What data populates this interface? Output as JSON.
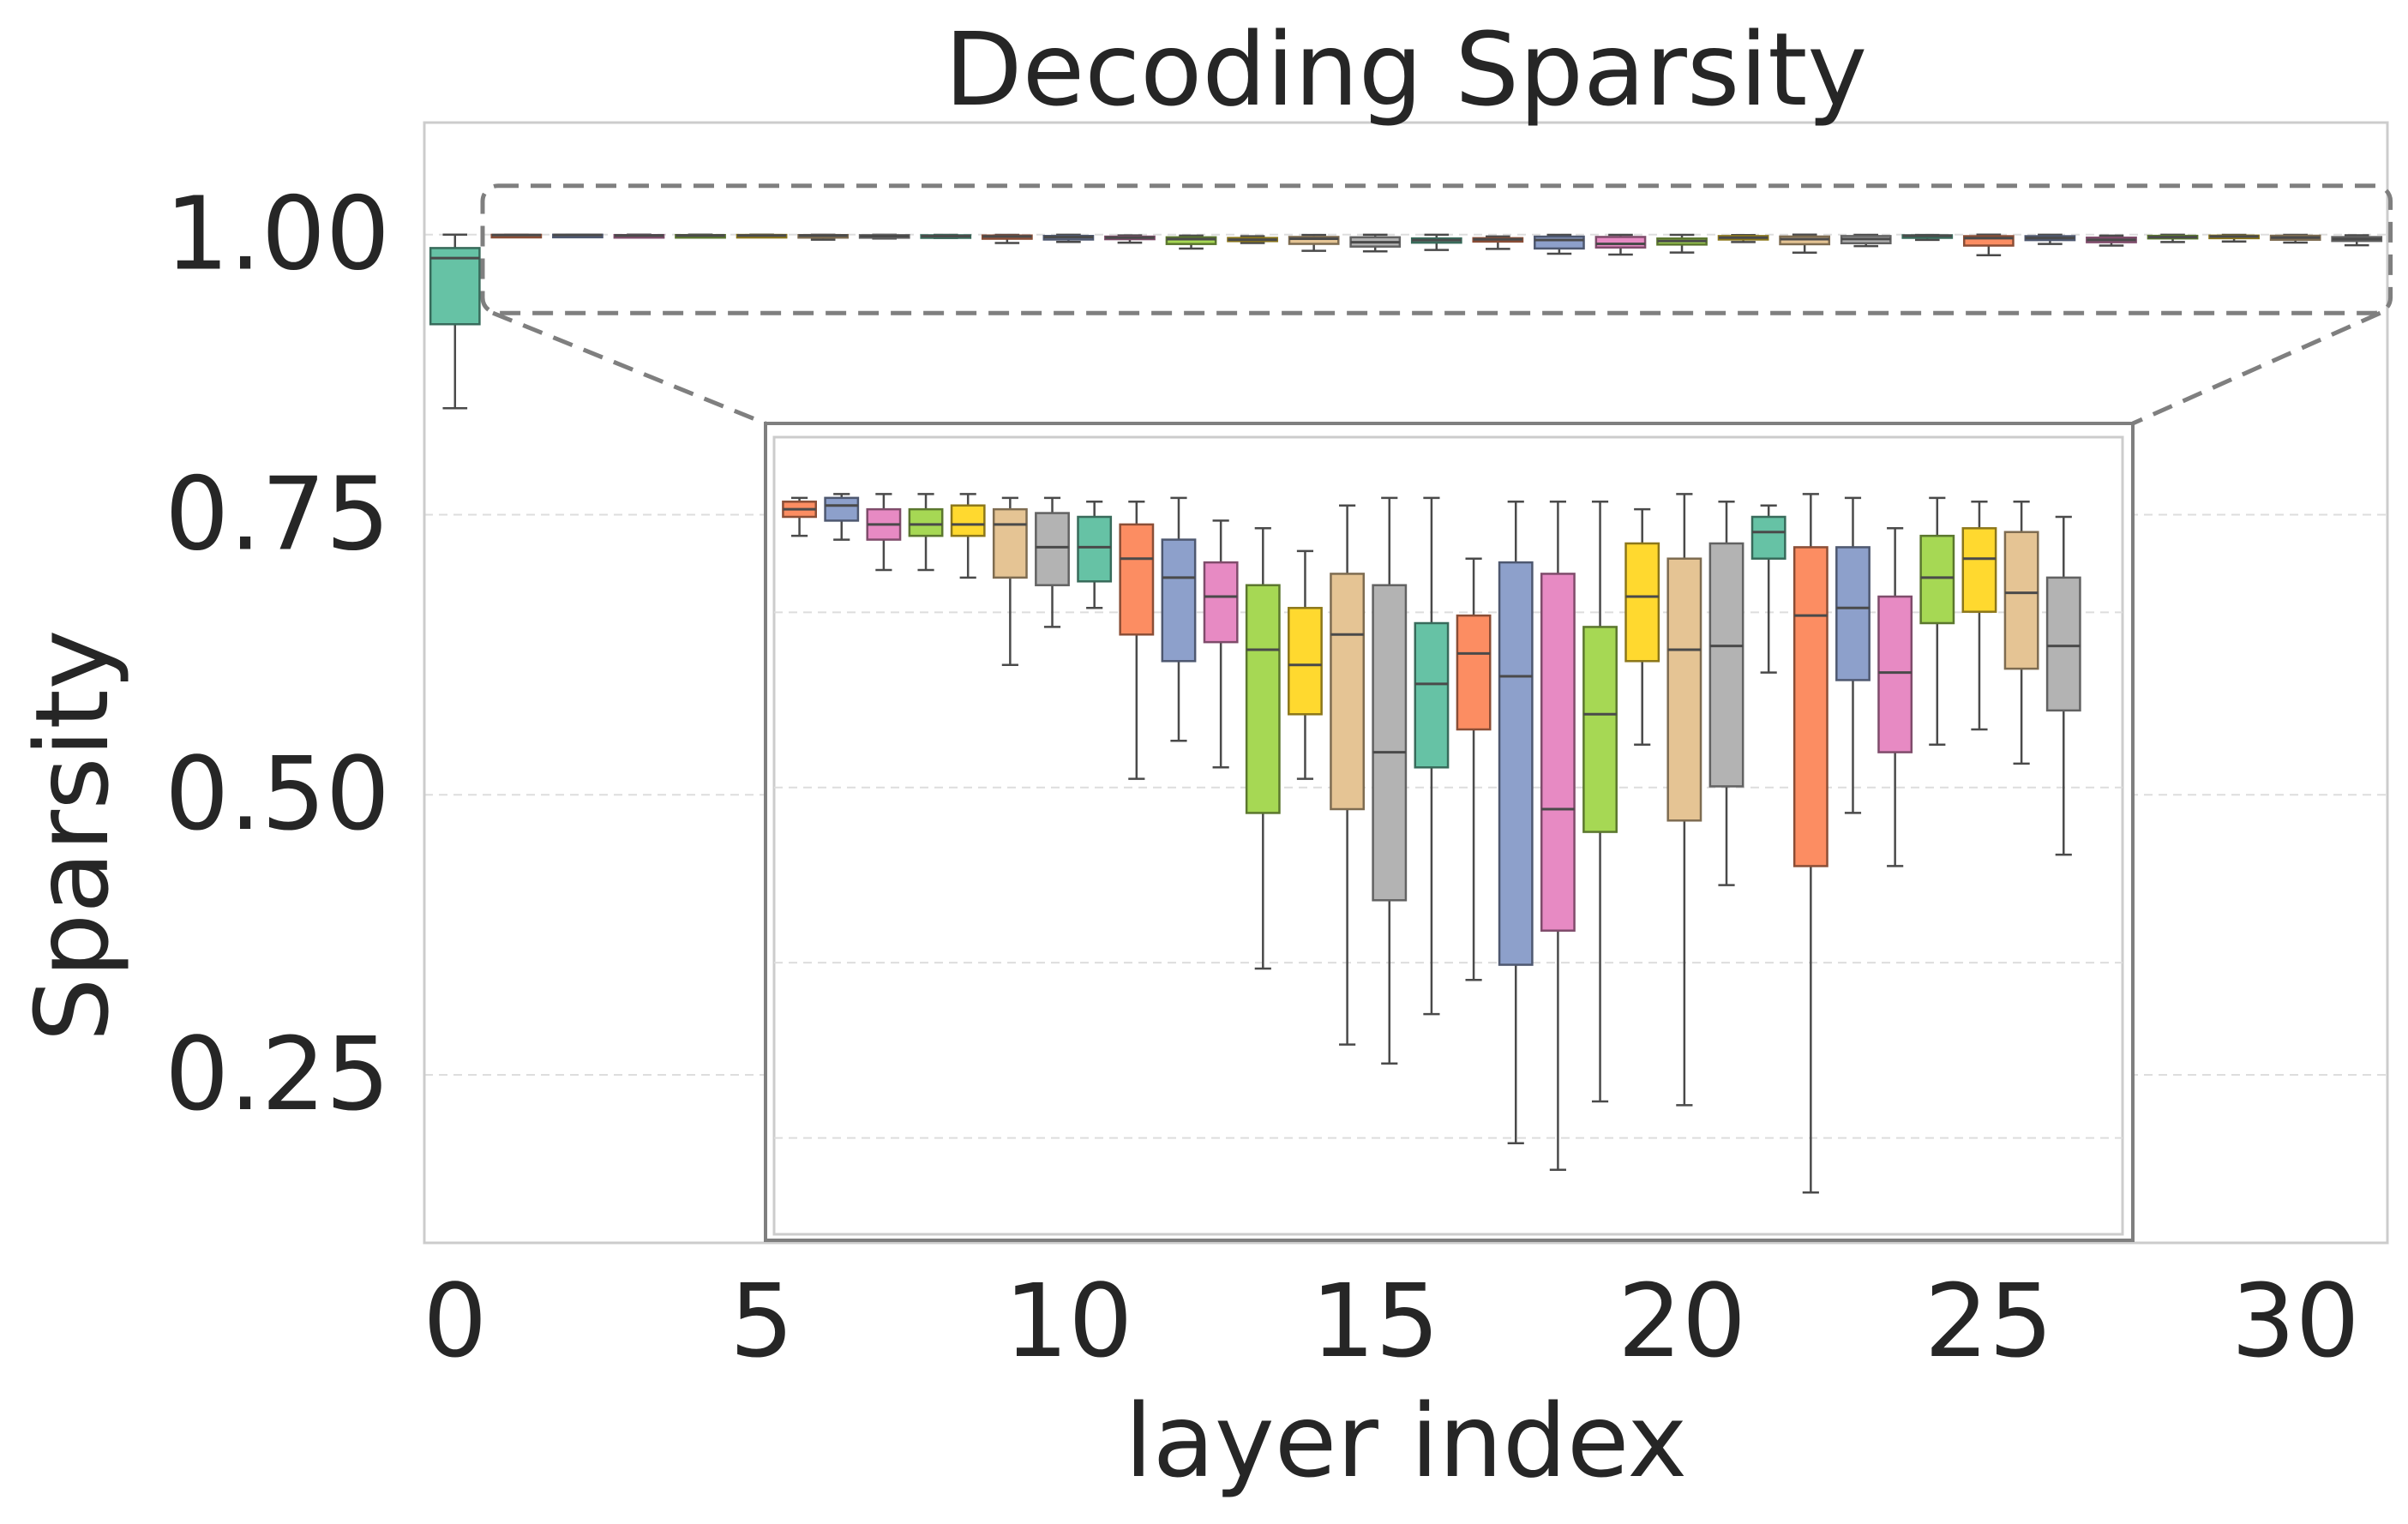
{
  "chart_data": {
    "type": "box",
    "title": "Decoding Sparsity",
    "xlabel": "layer index",
    "ylabel": "Sparsity",
    "xlim": [
      -0.5,
      31.5
    ],
    "ylim": [
      0.1,
      1.1
    ],
    "xticks": [
      0,
      5,
      10,
      15,
      20,
      25,
      30
    ],
    "yticks": [
      0.25,
      0.5,
      0.75,
      1.0
    ],
    "ytick_labels": [
      "0.25",
      "0.50",
      "0.75",
      "1.00"
    ],
    "grid": true,
    "palette": [
      "#66c2a5",
      "#fc8d62",
      "#8da0cb",
      "#e78ac3",
      "#a6d854",
      "#ffd92f",
      "#e5c494",
      "#b3b3b3"
    ],
    "zoom_region": {
      "layers": [
        1,
        31
      ],
      "ylim": [
        0.93,
        1.0
      ]
    },
    "inset_ylim": [
      0.9805,
      1.0015
    ],
    "layers": [
      {
        "layer": 0,
        "whislo": 0.845,
        "q1": 0.92,
        "med": 0.979,
        "q3": 0.988,
        "whishi": 1.0
      },
      {
        "layer": 1,
        "whislo": 0.9989,
        "q1": 0.9994,
        "med": 0.9996,
        "q3": 0.9998,
        "whishi": 0.9999
      },
      {
        "layer": 2,
        "whislo": 0.9988,
        "q1": 0.9993,
        "med": 0.9997,
        "q3": 0.9999,
        "whishi": 1.0
      },
      {
        "layer": 3,
        "whislo": 0.998,
        "q1": 0.9988,
        "med": 0.9992,
        "q3": 0.9996,
        "whishi": 1.0
      },
      {
        "layer": 4,
        "whislo": 0.998,
        "q1": 0.9989,
        "med": 0.9992,
        "q3": 0.9996,
        "whishi": 1.0
      },
      {
        "layer": 5,
        "whislo": 0.9978,
        "q1": 0.9989,
        "med": 0.9992,
        "q3": 0.9997,
        "whishi": 1.0
      },
      {
        "layer": 6,
        "whislo": 0.9955,
        "q1": 0.9978,
        "med": 0.9992,
        "q3": 0.9996,
        "whishi": 0.9999
      },
      {
        "layer": 7,
        "whislo": 0.9965,
        "q1": 0.9976,
        "med": 0.9986,
        "q3": 0.9995,
        "whishi": 0.9999
      },
      {
        "layer": 8,
        "whislo": 0.997,
        "q1": 0.9977,
        "med": 0.9986,
        "q3": 0.9994,
        "whishi": 0.9998
      },
      {
        "layer": 9,
        "whislo": 0.9925,
        "q1": 0.9963,
        "med": 0.9983,
        "q3": 0.9992,
        "whishi": 0.9998
      },
      {
        "layer": 10,
        "whislo": 0.9935,
        "q1": 0.9956,
        "med": 0.9978,
        "q3": 0.9988,
        "whishi": 0.9999
      },
      {
        "layer": 11,
        "whislo": 0.9928,
        "q1": 0.9961,
        "med": 0.9973,
        "q3": 0.9982,
        "whishi": 0.9993
      },
      {
        "layer": 12,
        "whislo": 0.9875,
        "q1": 0.9916,
        "med": 0.9959,
        "q3": 0.9976,
        "whishi": 0.9991
      },
      {
        "layer": 13,
        "whislo": 0.9925,
        "q1": 0.9942,
        "med": 0.9955,
        "q3": 0.997,
        "whishi": 0.9985
      },
      {
        "layer": 14,
        "whislo": 0.9855,
        "q1": 0.9917,
        "med": 0.9963,
        "q3": 0.9979,
        "whishi": 0.9997
      },
      {
        "layer": 15,
        "whislo": 0.985,
        "q1": 0.9893,
        "med": 0.9932,
        "q3": 0.9976,
        "whishi": 0.9999
      },
      {
        "layer": 16,
        "whislo": 0.9863,
        "q1": 0.9928,
        "med": 0.995,
        "q3": 0.9966,
        "whishi": 0.9999
      },
      {
        "layer": 17,
        "whislo": 0.9872,
        "q1": 0.9938,
        "med": 0.9958,
        "q3": 0.9968,
        "whishi": 0.9983
      },
      {
        "layer": 18,
        "whislo": 0.9829,
        "q1": 0.9876,
        "med": 0.9952,
        "q3": 0.9982,
        "whishi": 0.9998
      },
      {
        "layer": 19,
        "whislo": 0.9822,
        "q1": 0.9885,
        "med": 0.9917,
        "q3": 0.9979,
        "whishi": 0.9998
      },
      {
        "layer": 20,
        "whislo": 0.984,
        "q1": 0.9911,
        "med": 0.9942,
        "q3": 0.9965,
        "whishi": 0.9998
      },
      {
        "layer": 21,
        "whislo": 0.9934,
        "q1": 0.9956,
        "med": 0.9973,
        "q3": 0.9987,
        "whishi": 0.9996
      },
      {
        "layer": 22,
        "whislo": 0.9839,
        "q1": 0.9914,
        "med": 0.9959,
        "q3": 0.9983,
        "whishi": 1.0
      },
      {
        "layer": 23,
        "whislo": 0.9897,
        "q1": 0.9923,
        "med": 0.996,
        "q3": 0.9987,
        "whishi": 0.9998
      },
      {
        "layer": 24,
        "whislo": 0.9953,
        "q1": 0.9983,
        "med": 0.999,
        "q3": 0.9994,
        "whishi": 0.9997
      },
      {
        "layer": 25,
        "whislo": 0.9816,
        "q1": 0.9902,
        "med": 0.9968,
        "q3": 0.9986,
        "whishi": 1.0
      },
      {
        "layer": 26,
        "whislo": 0.9916,
        "q1": 0.9951,
        "med": 0.997,
        "q3": 0.9986,
        "whishi": 0.9999
      },
      {
        "layer": 27,
        "whislo": 0.9902,
        "q1": 0.9932,
        "med": 0.9953,
        "q3": 0.9973,
        "whishi": 0.9991
      },
      {
        "layer": 28,
        "whislo": 0.9934,
        "q1": 0.9966,
        "med": 0.9978,
        "q3": 0.9989,
        "whishi": 0.9999
      },
      {
        "layer": 29,
        "whislo": 0.9938,
        "q1": 0.9969,
        "med": 0.9983,
        "q3": 0.9991,
        "whishi": 0.9998
      },
      {
        "layer": 30,
        "whislo": 0.9929,
        "q1": 0.9954,
        "med": 0.9974,
        "q3": 0.999,
        "whishi": 0.9998
      },
      {
        "layer": 31,
        "whislo": 0.9905,
        "q1": 0.9943,
        "med": 0.996,
        "q3": 0.9978,
        "whishi": 0.9994
      }
    ]
  }
}
